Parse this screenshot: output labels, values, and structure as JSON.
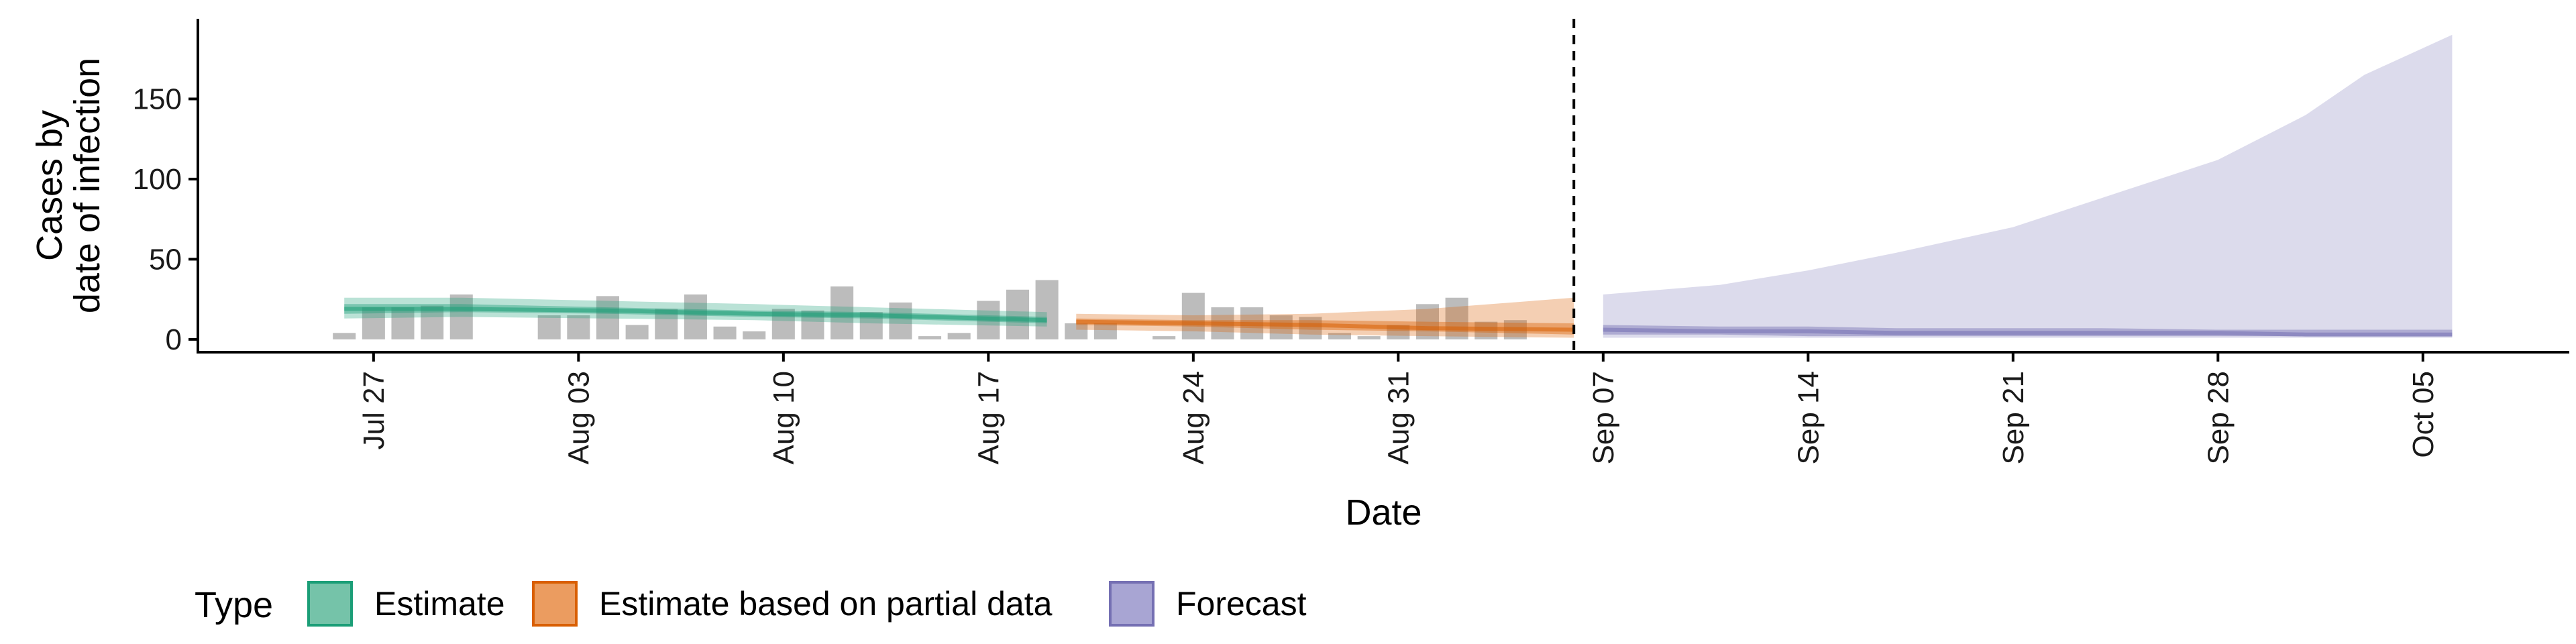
{
  "chart_data": {
    "type": "bar",
    "xlabel": "Date",
    "ylabel_lines": [
      "Cases by",
      "date of infection"
    ],
    "x_range": [
      "2021-07-21",
      "2021-10-10"
    ],
    "ylim": [
      -8,
      200
    ],
    "y_ticks": [
      0,
      50,
      100,
      150
    ],
    "x_ticks": [
      {
        "date": "2021-07-27",
        "label": "Jul 27"
      },
      {
        "date": "2021-08-03",
        "label": "Aug 03"
      },
      {
        "date": "2021-08-10",
        "label": "Aug 10"
      },
      {
        "date": "2021-08-17",
        "label": "Aug 17"
      },
      {
        "date": "2021-08-24",
        "label": "Aug 24"
      },
      {
        "date": "2021-08-31",
        "label": "Aug 31"
      },
      {
        "date": "2021-09-07",
        "label": "Sep 07"
      },
      {
        "date": "2021-09-14",
        "label": "Sep 14"
      },
      {
        "date": "2021-09-21",
        "label": "Sep 21"
      },
      {
        "date": "2021-09-28",
        "label": "Sep 28"
      },
      {
        "date": "2021-10-05",
        "label": "Oct 05"
      }
    ],
    "forecast_start": "2021-09-06",
    "observed_cases": {
      "start": "2021-07-26",
      "values": [
        4,
        20,
        20,
        21,
        28,
        0,
        0,
        15,
        15,
        27,
        9,
        19,
        28,
        8,
        5,
        19,
        18,
        33,
        17,
        23,
        2,
        4,
        24,
        31,
        37,
        10,
        10,
        0,
        2,
        29,
        20,
        20,
        15,
        14,
        4,
        2,
        9,
        22,
        26,
        11,
        12
      ]
    },
    "series": [
      {
        "name": "Estimate",
        "color": "#1b9e77",
        "dates": [
          "2021-07-26",
          "2021-07-30",
          "2021-08-04",
          "2021-08-09",
          "2021-08-13",
          "2021-08-19"
        ],
        "median": [
          19,
          19,
          18,
          16,
          15,
          12
        ],
        "lower_90": [
          13,
          14,
          13,
          12,
          10,
          8
        ],
        "upper_90": [
          26,
          26,
          24,
          22,
          20,
          17
        ],
        "lower_50": [
          16,
          17,
          16,
          14,
          13,
          10
        ],
        "upper_50": [
          22,
          22,
          20,
          18,
          17,
          14
        ]
      },
      {
        "name": "Estimate based on partial data",
        "color": "#d95f02",
        "dates": [
          "2021-08-20",
          "2021-08-24",
          "2021-08-28",
          "2021-09-01",
          "2021-09-06"
        ],
        "median": [
          11,
          10,
          9,
          7,
          6
        ],
        "lower_90": [
          6,
          5,
          3,
          2,
          1
        ],
        "upper_90": [
          16,
          15,
          16,
          19,
          26
        ],
        "lower_50": [
          9,
          8,
          6,
          5,
          3
        ],
        "upper_50": [
          13,
          12,
          12,
          11,
          10
        ]
      },
      {
        "name": "Forecast",
        "color": "#7570b3",
        "dates": [
          "2021-09-07",
          "2021-09-11",
          "2021-09-14",
          "2021-09-17",
          "2021-09-21",
          "2021-09-24",
          "2021-09-28",
          "2021-10-01",
          "2021-10-03",
          "2021-10-06"
        ],
        "median": [
          6,
          5,
          5,
          4,
          4,
          4,
          4,
          3,
          3,
          3
        ],
        "lower_90": [
          1,
          1,
          1,
          1,
          1,
          1,
          1,
          1,
          1,
          1
        ],
        "upper_90": [
          28,
          34,
          43,
          54,
          70,
          88,
          112,
          140,
          165,
          190
        ],
        "lower_50": [
          3,
          3,
          2,
          2,
          2,
          2,
          2,
          2,
          2,
          2
        ],
        "upper_50": [
          9,
          8,
          8,
          7,
          7,
          7,
          6,
          6,
          6,
          6
        ]
      }
    ],
    "legend": {
      "title": "Type",
      "placement": "bottom",
      "items": [
        {
          "label": "Estimate",
          "fill": "#75c3a9",
          "stroke": "#1b9e77"
        },
        {
          "label": "Estimate based on partial data",
          "fill": "#eb9c60",
          "stroke": "#d95f02"
        },
        {
          "label": "Forecast",
          "fill": "#a8a5d3",
          "stroke": "#7570b3"
        }
      ]
    },
    "grid": false
  }
}
